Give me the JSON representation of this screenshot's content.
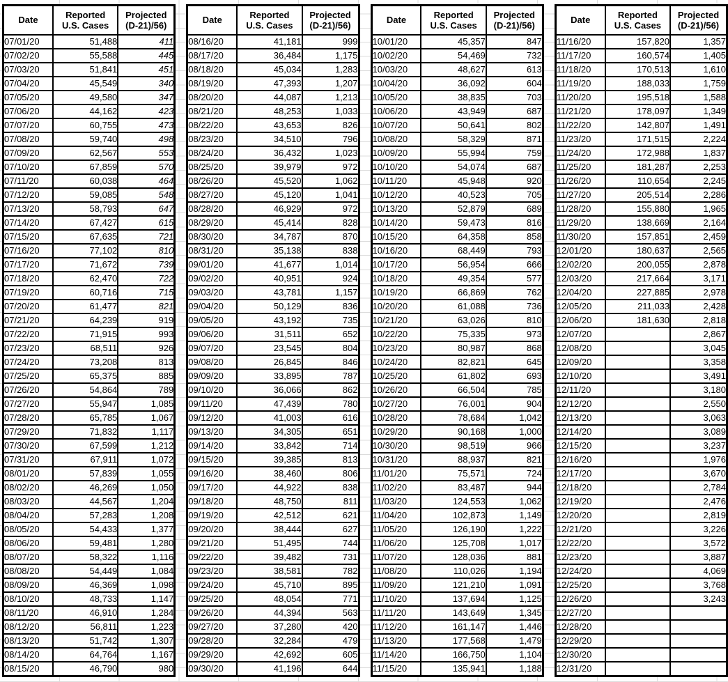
{
  "colors": {
    "text": "#000000",
    "table_border": "#000000",
    "background": "#ffffff",
    "gridline": "#dcdcdc"
  },
  "headers": {
    "date": "Date",
    "reported_line1": "Reported",
    "reported_line2": "U.S. Cases",
    "projected_line1": "Projected",
    "projected_line2": "(D-21)/56)"
  },
  "blocks": [
    {
      "italic_projected_until_row": 19,
      "rows": [
        [
          "07/01/20",
          "51,488",
          "411"
        ],
        [
          "07/02/20",
          "55,588",
          "445"
        ],
        [
          "07/03/20",
          "51,841",
          "451"
        ],
        [
          "07/04/20",
          "45,549",
          "340"
        ],
        [
          "07/05/20",
          "49,580",
          "347"
        ],
        [
          "07/06/20",
          "44,162",
          "423"
        ],
        [
          "07/07/20",
          "60,755",
          "473"
        ],
        [
          "07/08/20",
          "59,740",
          "498"
        ],
        [
          "07/09/20",
          "62,567",
          "553"
        ],
        [
          "07/10/20",
          "67,859",
          "570"
        ],
        [
          "07/11/20",
          "60,038",
          "464"
        ],
        [
          "07/12/20",
          "59,085",
          "548"
        ],
        [
          "07/13/20",
          "58,793",
          "647"
        ],
        [
          "07/14/20",
          "67,427",
          "615"
        ],
        [
          "07/15/20",
          "67,635",
          "721"
        ],
        [
          "07/16/20",
          "77,102",
          "810"
        ],
        [
          "07/17/20",
          "71,672",
          "739"
        ],
        [
          "07/18/20",
          "62,470",
          "722"
        ],
        [
          "07/19/20",
          "60,716",
          "715"
        ],
        [
          "07/20/20",
          "61,477",
          "821"
        ],
        [
          "07/21/20",
          "64,239",
          "919"
        ],
        [
          "07/22/20",
          "71,915",
          "993"
        ],
        [
          "07/23/20",
          "68,511",
          "926"
        ],
        [
          "07/24/20",
          "73,208",
          "813"
        ],
        [
          "07/25/20",
          "65,375",
          "885"
        ],
        [
          "07/26/20",
          "54,864",
          "789"
        ],
        [
          "07/27/20",
          "55,947",
          "1,085"
        ],
        [
          "07/28/20",
          "65,785",
          "1,067"
        ],
        [
          "07/29/20",
          "71,832",
          "1,117"
        ],
        [
          "07/30/20",
          "67,599",
          "1,212"
        ],
        [
          "07/31/20",
          "67,911",
          "1,072"
        ],
        [
          "08/01/20",
          "57,839",
          "1,055"
        ],
        [
          "08/02/20",
          "46,269",
          "1,050"
        ],
        [
          "08/03/20",
          "44,567",
          "1,204"
        ],
        [
          "08/04/20",
          "57,283",
          "1,208"
        ],
        [
          "08/05/20",
          "54,433",
          "1,377"
        ],
        [
          "08/06/20",
          "59,481",
          "1,280"
        ],
        [
          "08/07/20",
          "58,322",
          "1,116"
        ],
        [
          "08/08/20",
          "54,449",
          "1,084"
        ],
        [
          "08/09/20",
          "46,369",
          "1,098"
        ],
        [
          "08/10/20",
          "48,733",
          "1,147"
        ],
        [
          "08/11/20",
          "46,910",
          "1,284"
        ],
        [
          "08/12/20",
          "56,811",
          "1,223"
        ],
        [
          "08/13/20",
          "51,742",
          "1,307"
        ],
        [
          "08/14/20",
          "64,764",
          "1,167"
        ],
        [
          "08/15/20",
          "46,790",
          "980"
        ]
      ]
    },
    {
      "rows": [
        [
          "08/16/20",
          "41,181",
          "999"
        ],
        [
          "08/17/20",
          "36,484",
          "1,175"
        ],
        [
          "08/18/20",
          "45,034",
          "1,283"
        ],
        [
          "08/19/20",
          "47,393",
          "1,207"
        ],
        [
          "08/20/20",
          "44,087",
          "1,213"
        ],
        [
          "08/21/20",
          "48,253",
          "1,033"
        ],
        [
          "08/22/20",
          "43,653",
          "826"
        ],
        [
          "08/23/20",
          "34,510",
          "796"
        ],
        [
          "08/24/20",
          "36,432",
          "1,023"
        ],
        [
          "08/25/20",
          "39,979",
          "972"
        ],
        [
          "08/26/20",
          "45,520",
          "1,062"
        ],
        [
          "08/27/20",
          "45,120",
          "1,041"
        ],
        [
          "08/28/20",
          "46,929",
          "972"
        ],
        [
          "08/29/20",
          "45,414",
          "828"
        ],
        [
          "08/30/20",
          "34,787",
          "870"
        ],
        [
          "08/31/20",
          "35,138",
          "838"
        ],
        [
          "09/01/20",
          "41,677",
          "1,014"
        ],
        [
          "09/02/20",
          "40,951",
          "924"
        ],
        [
          "09/03/20",
          "43,781",
          "1,157"
        ],
        [
          "09/04/20",
          "50,129",
          "836"
        ],
        [
          "09/05/20",
          "43,192",
          "735"
        ],
        [
          "09/06/20",
          "31,511",
          "652"
        ],
        [
          "09/07/20",
          "23,545",
          "804"
        ],
        [
          "09/08/20",
          "26,845",
          "846"
        ],
        [
          "09/09/20",
          "33,895",
          "787"
        ],
        [
          "09/10/20",
          "36,066",
          "862"
        ],
        [
          "09/11/20",
          "47,439",
          "780"
        ],
        [
          "09/12/20",
          "41,003",
          "616"
        ],
        [
          "09/13/20",
          "34,305",
          "651"
        ],
        [
          "09/14/20",
          "33,842",
          "714"
        ],
        [
          "09/15/20",
          "39,385",
          "813"
        ],
        [
          "09/16/20",
          "38,460",
          "806"
        ],
        [
          "09/17/20",
          "44,922",
          "838"
        ],
        [
          "09/18/20",
          "48,750",
          "811"
        ],
        [
          "09/19/20",
          "42,512",
          "621"
        ],
        [
          "09/20/20",
          "38,444",
          "627"
        ],
        [
          "09/21/20",
          "51,495",
          "744"
        ],
        [
          "09/22/20",
          "39,482",
          "731"
        ],
        [
          "09/23/20",
          "38,581",
          "782"
        ],
        [
          "09/24/20",
          "45,710",
          "895"
        ],
        [
          "09/25/20",
          "48,054",
          "771"
        ],
        [
          "09/26/20",
          "44,394",
          "563"
        ],
        [
          "09/27/20",
          "37,280",
          "420"
        ],
        [
          "09/28/20",
          "32,284",
          "479"
        ],
        [
          "09/29/20",
          "42,692",
          "605"
        ],
        [
          "09/30/20",
          "41,196",
          "644"
        ]
      ]
    },
    {
      "rows": [
        [
          "10/01/20",
          "45,357",
          "847"
        ],
        [
          "10/02/20",
          "54,469",
          "732"
        ],
        [
          "10/03/20",
          "48,627",
          "613"
        ],
        [
          "10/04/20",
          "36,092",
          "604"
        ],
        [
          "10/05/20",
          "38,835",
          "703"
        ],
        [
          "10/06/20",
          "43,949",
          "687"
        ],
        [
          "10/07/20",
          "50,641",
          "802"
        ],
        [
          "10/08/20",
          "58,329",
          "871"
        ],
        [
          "10/09/20",
          "55,994",
          "759"
        ],
        [
          "10/10/20",
          "54,074",
          "687"
        ],
        [
          "10/11/20",
          "45,948",
          "920"
        ],
        [
          "10/12/20",
          "40,523",
          "705"
        ],
        [
          "10/13/20",
          "52,879",
          "689"
        ],
        [
          "10/14/20",
          "59,473",
          "816"
        ],
        [
          "10/15/20",
          "64,358",
          "858"
        ],
        [
          "10/16/20",
          "68,449",
          "793"
        ],
        [
          "10/17/20",
          "56,954",
          "666"
        ],
        [
          "10/18/20",
          "49,354",
          "577"
        ],
        [
          "10/19/20",
          "66,869",
          "762"
        ],
        [
          "10/20/20",
          "61,088",
          "736"
        ],
        [
          "10/21/20",
          "63,026",
          "810"
        ],
        [
          "10/22/20",
          "75,335",
          "973"
        ],
        [
          "10/23/20",
          "80,987",
          "868"
        ],
        [
          "10/24/20",
          "82,821",
          "645"
        ],
        [
          "10/25/20",
          "61,802",
          "693"
        ],
        [
          "10/26/20",
          "66,504",
          "785"
        ],
        [
          "10/27/20",
          "76,001",
          "904"
        ],
        [
          "10/28/20",
          "78,684",
          "1,042"
        ],
        [
          "10/29/20",
          "90,168",
          "1,000"
        ],
        [
          "10/30/20",
          "98,519",
          "966"
        ],
        [
          "10/31/20",
          "88,937",
          "821"
        ],
        [
          "11/01/20",
          "75,571",
          "724"
        ],
        [
          "11/02/20",
          "83,487",
          "944"
        ],
        [
          "11/03/20",
          "124,553",
          "1,062"
        ],
        [
          "11/04/20",
          "102,873",
          "1,149"
        ],
        [
          "11/05/20",
          "126,190",
          "1,222"
        ],
        [
          "11/06/20",
          "125,708",
          "1,017"
        ],
        [
          "11/07/20",
          "128,036",
          "881"
        ],
        [
          "11/08/20",
          "110,026",
          "1,194"
        ],
        [
          "11/09/20",
          "121,210",
          "1,091"
        ],
        [
          "11/10/20",
          "137,694",
          "1,125"
        ],
        [
          "11/11/20",
          "143,649",
          "1,345"
        ],
        [
          "11/12/20",
          "161,147",
          "1,446"
        ],
        [
          "11/13/20",
          "177,568",
          "1,479"
        ],
        [
          "11/14/20",
          "166,750",
          "1,104"
        ],
        [
          "11/15/20",
          "135,941",
          "1,188"
        ]
      ]
    },
    {
      "rows": [
        [
          "11/16/20",
          "157,820",
          "1,357"
        ],
        [
          "11/17/20",
          "160,574",
          "1,405"
        ],
        [
          "11/18/20",
          "170,513",
          "1,610"
        ],
        [
          "11/19/20",
          "188,033",
          "1,759"
        ],
        [
          "11/20/20",
          "195,518",
          "1,588"
        ],
        [
          "11/21/20",
          "178,097",
          "1,349"
        ],
        [
          "11/22/20",
          "142,807",
          "1,491"
        ],
        [
          "11/23/20",
          "171,515",
          "2,224"
        ],
        [
          "11/24/20",
          "172,988",
          "1,837"
        ],
        [
          "11/25/20",
          "181,287",
          "2,253"
        ],
        [
          "11/26/20",
          "110,654",
          "2,245"
        ],
        [
          "11/27/20",
          "205,514",
          "2,286"
        ],
        [
          "11/28/20",
          "155,880",
          "1,965"
        ],
        [
          "11/29/20",
          "138,669",
          "2,164"
        ],
        [
          "11/30/20",
          "157,851",
          "2,459"
        ],
        [
          "12/01/20",
          "180,637",
          "2,565"
        ],
        [
          "12/02/20",
          "200,055",
          "2,878"
        ],
        [
          "12/03/20",
          "217,664",
          "3,171"
        ],
        [
          "12/04/20",
          "227,885",
          "2,978"
        ],
        [
          "12/05/20",
          "211,033",
          "2,428"
        ],
        [
          "12/06/20",
          "181,630",
          "2,818"
        ],
        [
          "12/07/20",
          "",
          "2,867"
        ],
        [
          "12/08/20",
          "",
          "3,045"
        ],
        [
          "12/09/20",
          "",
          "3,358"
        ],
        [
          "12/10/20",
          "",
          "3,491"
        ],
        [
          "12/11/20",
          "",
          "3,180"
        ],
        [
          "12/12/20",
          "",
          "2,550"
        ],
        [
          "12/13/20",
          "",
          "3,063"
        ],
        [
          "12/14/20",
          "",
          "3,089"
        ],
        [
          "12/15/20",
          "",
          "3,237"
        ],
        [
          "12/16/20",
          "",
          "1,976"
        ],
        [
          "12/17/20",
          "",
          "3,670"
        ],
        [
          "12/18/20",
          "",
          "2,784"
        ],
        [
          "12/19/20",
          "",
          "2,476"
        ],
        [
          "12/20/20",
          "",
          "2,819"
        ],
        [
          "12/21/20",
          "",
          "3,226"
        ],
        [
          "12/22/20",
          "",
          "3,572"
        ],
        [
          "12/23/20",
          "",
          "3,887"
        ],
        [
          "12/24/20",
          "",
          "4,069"
        ],
        [
          "12/25/20",
          "",
          "3,768"
        ],
        [
          "12/26/20",
          "",
          "3,243"
        ],
        [
          "12/27/20",
          "",
          ""
        ],
        [
          "12/28/20",
          "",
          ""
        ],
        [
          "12/29/20",
          "",
          ""
        ],
        [
          "12/30/20",
          "",
          ""
        ],
        [
          "12/31/20",
          "",
          ""
        ]
      ]
    }
  ]
}
